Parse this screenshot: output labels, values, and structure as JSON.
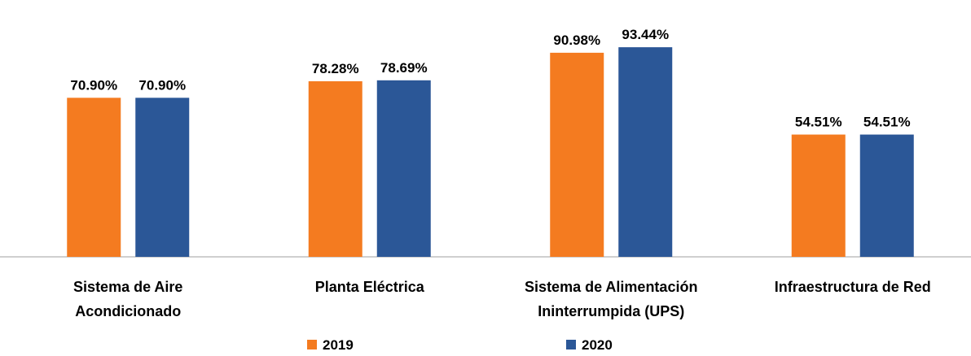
{
  "chart_data": {
    "type": "bar",
    "categories": [
      "Sistema de Aire\nAcondicionado",
      "Planta Eléctrica",
      "Sistema de Alimentación\nIninterrumpida (UPS)",
      "Infraestructura de Red"
    ],
    "series": [
      {
        "name": "2019",
        "color": "#f47b20",
        "values": [
          70.9,
          78.28,
          90.98,
          54.51
        ],
        "value_labels": [
          "70.90%",
          "78.28%",
          "90.98%",
          "54.51%"
        ]
      },
      {
        "name": "2020",
        "color": "#2b5797",
        "values": [
          70.9,
          78.69,
          93.44,
          54.51
        ],
        "value_labels": [
          "70.90%",
          "78.69%",
          "93.44%",
          "54.51%"
        ]
      }
    ],
    "ylim": [
      0,
      100
    ],
    "legend": "bottom"
  }
}
